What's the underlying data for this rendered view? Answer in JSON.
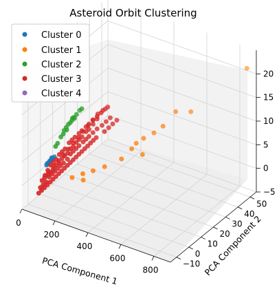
{
  "chart_data": {
    "type": "scatter",
    "title": "Asteroid Orbit Clustering",
    "xlabel": "PCA Component 1",
    "ylabel": "PCA Component 2",
    "zlabel": "",
    "x_ticks": [
      "0",
      "200",
      "400",
      "600",
      "800"
    ],
    "y_ticks": [
      "−10",
      "0",
      "10",
      "20",
      "30",
      "40",
      "50"
    ],
    "z_ticks": [
      "−5",
      "0",
      "5",
      "10",
      "15",
      "20"
    ],
    "xlim": [
      0,
      900
    ],
    "ylim": [
      -15,
      55
    ],
    "zlim": [
      -5,
      25
    ],
    "grid": true,
    "legend_position": "upper-left",
    "series": [
      {
        "name": "Cluster 0",
        "color": "#1f77b4",
        "points": [
          [
            10,
            5,
            0.5
          ],
          [
            15,
            6,
            1
          ],
          [
            20,
            7,
            1.2
          ],
          [
            25,
            8,
            1.5
          ],
          [
            12,
            4,
            0.8
          ],
          [
            18,
            5,
            1.1
          ],
          [
            8,
            4,
            0.4
          ],
          [
            22,
            7,
            1.3
          ],
          [
            14,
            6,
            0.9
          ],
          [
            16,
            7,
            1.4
          ]
        ]
      },
      {
        "name": "Cluster 1",
        "color": "#ff7f0e",
        "points": [
          [
            880,
            50,
            22
          ],
          [
            560,
            35,
            12
          ],
          [
            520,
            30,
            9.5
          ],
          [
            480,
            28,
            8
          ],
          [
            600,
            42,
            11
          ],
          [
            470,
            20,
            5
          ],
          [
            420,
            18,
            6
          ],
          [
            380,
            15,
            4
          ],
          [
            300,
            12,
            2
          ],
          [
            260,
            8,
            1.5
          ],
          [
            220,
            5,
            1
          ],
          [
            230,
            4,
            0
          ],
          [
            170,
            3,
            0
          ],
          [
            440,
            25,
            7
          ],
          [
            410,
            23,
            6
          ]
        ]
      },
      {
        "name": "Cluster 2",
        "color": "#2ca02c",
        "points": [
          [
            40,
            14,
            6
          ],
          [
            50,
            16,
            7
          ],
          [
            60,
            18,
            8
          ],
          [
            45,
            15,
            6.5
          ],
          [
            70,
            20,
            8.5
          ],
          [
            35,
            12,
            5
          ],
          [
            55,
            17,
            7.2
          ],
          [
            65,
            19,
            7.8
          ],
          [
            30,
            10,
            4
          ],
          [
            75,
            22,
            9
          ],
          [
            42,
            13,
            5.5
          ],
          [
            58,
            18,
            7.5
          ],
          [
            80,
            23,
            9.2
          ],
          [
            25,
            9,
            3.5
          ],
          [
            48,
            15,
            6
          ],
          [
            62,
            19,
            8
          ]
        ]
      },
      {
        "name": "Cluster 3",
        "color": "#d62728",
        "points": [
          [
            10,
            0,
            -2
          ],
          [
            20,
            1,
            -1
          ],
          [
            30,
            2,
            0
          ],
          [
            40,
            3,
            1
          ],
          [
            50,
            4,
            1.5
          ],
          [
            60,
            5,
            2
          ],
          [
            70,
            6,
            3
          ],
          [
            80,
            7,
            3.5
          ],
          [
            90,
            8,
            4
          ],
          [
            100,
            10,
            5
          ],
          [
            110,
            11,
            5.5
          ],
          [
            120,
            12,
            6
          ],
          [
            130,
            14,
            6.5
          ],
          [
            140,
            15,
            7
          ],
          [
            150,
            17,
            7.5
          ],
          [
            160,
            18,
            8
          ],
          [
            170,
            20,
            8.5
          ],
          [
            180,
            22,
            9
          ],
          [
            190,
            24,
            9.5
          ],
          [
            200,
            26,
            10
          ],
          [
            15,
            -2,
            -3
          ],
          [
            25,
            -1,
            -2.5
          ],
          [
            35,
            0,
            -2
          ],
          [
            45,
            1,
            -1
          ],
          [
            55,
            2,
            -0.5
          ],
          [
            65,
            3,
            0
          ],
          [
            75,
            4,
            0.5
          ],
          [
            85,
            5,
            1
          ],
          [
            95,
            6,
            1.5
          ],
          [
            105,
            8,
            2
          ],
          [
            115,
            9,
            3
          ],
          [
            125,
            10,
            3.5
          ],
          [
            135,
            11,
            4
          ],
          [
            145,
            12,
            4.5
          ],
          [
            155,
            14,
            5
          ],
          [
            165,
            15,
            5.5
          ],
          [
            175,
            16,
            6
          ],
          [
            185,
            18,
            6.5
          ],
          [
            195,
            20,
            7
          ],
          [
            210,
            22,
            7.5
          ],
          [
            220,
            24,
            8
          ],
          [
            230,
            26,
            8.5
          ],
          [
            18,
            1,
            -1.5
          ],
          [
            28,
            2,
            -1
          ],
          [
            38,
            3,
            -0.5
          ],
          [
            48,
            4,
            0
          ],
          [
            58,
            5,
            0.8
          ],
          [
            68,
            6,
            1.2
          ],
          [
            78,
            7,
            2
          ],
          [
            88,
            8,
            2.5
          ],
          [
            98,
            9,
            3
          ],
          [
            108,
            10,
            3.8
          ],
          [
            118,
            11,
            4.2
          ],
          [
            128,
            12,
            5
          ],
          [
            138,
            13,
            5.5
          ],
          [
            148,
            14,
            6
          ],
          [
            158,
            16,
            6.8
          ],
          [
            168,
            17,
            7.2
          ],
          [
            178,
            19,
            8
          ],
          [
            188,
            21,
            8.8
          ],
          [
            12,
            -3,
            -4
          ],
          [
            22,
            -2,
            -3.5
          ],
          [
            32,
            -1,
            -3
          ],
          [
            42,
            0,
            -2.5
          ],
          [
            52,
            1,
            -2
          ],
          [
            62,
            2,
            -1.5
          ],
          [
            72,
            3,
            -1
          ],
          [
            82,
            4,
            -0.5
          ],
          [
            92,
            5,
            0
          ],
          [
            102,
            6,
            0.5
          ],
          [
            112,
            7,
            1
          ],
          [
            122,
            8,
            1.5
          ],
          [
            132,
            9,
            2
          ],
          [
            142,
            10,
            2.5
          ],
          [
            152,
            11,
            3
          ],
          [
            162,
            12,
            3.5
          ],
          [
            172,
            13,
            4
          ],
          [
            182,
            14,
            4.5
          ],
          [
            192,
            15,
            5
          ],
          [
            202,
            16,
            5.5
          ],
          [
            212,
            17,
            6
          ],
          [
            240,
            20,
            7
          ],
          [
            250,
            22,
            7.5
          ],
          [
            260,
            24,
            8
          ],
          [
            270,
            26,
            8.5
          ],
          [
            20,
            4,
            -1
          ],
          [
            35,
            6,
            0
          ],
          [
            50,
            8,
            1
          ],
          [
            65,
            10,
            2
          ],
          [
            80,
            12,
            3
          ],
          [
            95,
            14,
            4
          ],
          [
            110,
            16,
            5
          ],
          [
            125,
            18,
            6
          ],
          [
            140,
            20,
            7
          ],
          [
            155,
            22,
            8
          ],
          [
            170,
            24,
            9
          ],
          [
            185,
            26,
            9.5
          ],
          [
            200,
            28,
            10
          ]
        ]
      },
      {
        "name": "Cluster 4",
        "color": "#9467bd",
        "points": []
      }
    ]
  }
}
